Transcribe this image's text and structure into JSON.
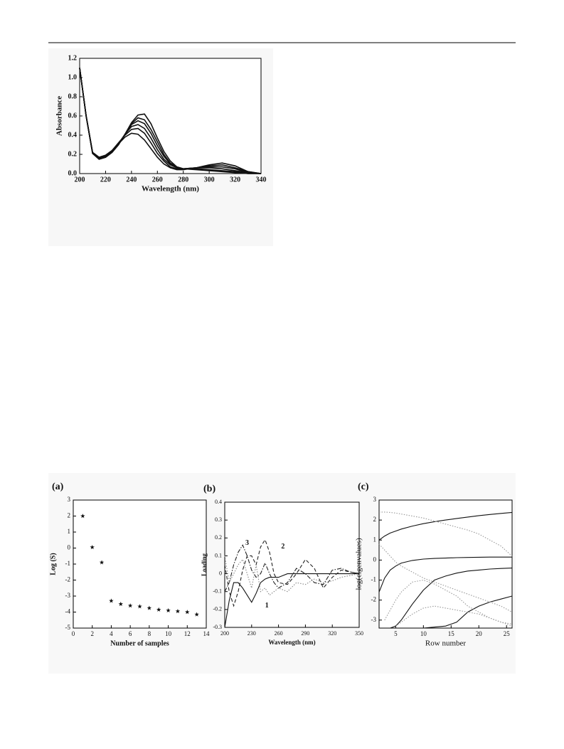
{
  "chart_data": [
    {
      "type": "line",
      "x_label": "Wavelength (nm)",
      "y_label": "Absorbance",
      "xlim": [
        200,
        340
      ],
      "ylim": [
        0,
        1.2
      ],
      "xticks": [
        200,
        220,
        240,
        260,
        280,
        300,
        320,
        340
      ],
      "yticks": [
        {
          "value": 0,
          "label": "0.0"
        },
        0.2,
        0.4,
        0.6,
        0.8,
        {
          "value": 1,
          "label": "1.0"
        },
        1.2
      ],
      "x": [
        200,
        205,
        210,
        215,
        220,
        225,
        230,
        235,
        240,
        245,
        250,
        255,
        260,
        265,
        270,
        275,
        280,
        290,
        300,
        310,
        320,
        330,
        340
      ],
      "series": [
        {
          "color": "#111111",
          "style": "solid",
          "values": [
            1.1,
            0.6,
            0.22,
            0.17,
            0.19,
            0.24,
            0.31,
            0.38,
            0.42,
            0.41,
            0.35,
            0.26,
            0.17,
            0.1,
            0.06,
            0.04,
            0.04,
            0.06,
            0.09,
            0.11,
            0.08,
            0.02,
            0
          ]
        },
        {
          "color": "#111111",
          "style": "solid",
          "values": [
            1.1,
            0.6,
            0.22,
            0.17,
            0.19,
            0.24,
            0.32,
            0.4,
            0.46,
            0.47,
            0.42,
            0.32,
            0.21,
            0.13,
            0.07,
            0.05,
            0.05,
            0.06,
            0.08,
            0.09,
            0.06,
            0.02,
            0
          ]
        },
        {
          "color": "#111111",
          "style": "solid",
          "values": [
            1.1,
            0.6,
            0.21,
            0.16,
            0.18,
            0.23,
            0.31,
            0.41,
            0.49,
            0.51,
            0.47,
            0.37,
            0.25,
            0.15,
            0.09,
            0.06,
            0.05,
            0.06,
            0.07,
            0.07,
            0.05,
            0.01,
            0
          ]
        },
        {
          "color": "#111111",
          "style": "solid",
          "values": [
            1.1,
            0.6,
            0.21,
            0.16,
            0.18,
            0.23,
            0.31,
            0.41,
            0.51,
            0.55,
            0.52,
            0.42,
            0.29,
            0.18,
            0.1,
            0.06,
            0.05,
            0.06,
            0.06,
            0.05,
            0.03,
            0.01,
            0
          ]
        },
        {
          "color": "#111111",
          "style": "solid",
          "values": [
            1.1,
            0.6,
            0.21,
            0.15,
            0.17,
            0.22,
            0.3,
            0.41,
            0.52,
            0.58,
            0.56,
            0.46,
            0.33,
            0.2,
            0.11,
            0.07,
            0.05,
            0.05,
            0.04,
            0.03,
            0.02,
            0,
            0
          ]
        },
        {
          "color": "#111111",
          "style": "solid",
          "values": [
            1.1,
            0.6,
            0.21,
            0.15,
            0.17,
            0.22,
            0.3,
            0.41,
            0.53,
            0.61,
            0.62,
            0.52,
            0.37,
            0.23,
            0.13,
            0.07,
            0.05,
            0.04,
            0.03,
            0.02,
            0.01,
            0,
            0
          ]
        }
      ]
    },
    {
      "type": "scatter",
      "label": "(a)",
      "x_label": "Number of samples",
      "y_label": "Log (S)",
      "xlim": [
        0,
        14
      ],
      "ylim": [
        -5,
        3
      ],
      "xticks": [
        0,
        2,
        4,
        6,
        8,
        10,
        12,
        14
      ],
      "yticks": [
        -5,
        -4,
        -3,
        -2,
        -1,
        0,
        1,
        2,
        3
      ],
      "color": "#111111",
      "x": [
        1,
        2,
        3,
        4,
        5,
        6,
        7,
        8,
        9,
        10,
        11,
        12,
        13
      ],
      "values": [
        2,
        0.05,
        -0.9,
        -3.3,
        -3.5,
        -3.6,
        -3.65,
        -3.75,
        -3.85,
        -3.9,
        -3.95,
        -4,
        -4.15
      ]
    },
    {
      "type": "line",
      "label": "(b)",
      "x_label": "Wavelength (nm)",
      "y_label": "Loading",
      "xlim": [
        200,
        350
      ],
      "ylim": [
        -0.3,
        0.4
      ],
      "xticks": [
        200,
        230,
        260,
        290,
        320,
        350
      ],
      "yticks": [
        -0.3,
        -0.2,
        -0.1,
        0,
        0.1,
        0.2,
        0.3,
        0.4
      ],
      "x": [
        200,
        205,
        210,
        215,
        220,
        225,
        230,
        235,
        240,
        245,
        250,
        255,
        260,
        270,
        280,
        290,
        300,
        310,
        320,
        330,
        340,
        350
      ],
      "series": [
        {
          "color": "#111111",
          "style": "solid",
          "values": [
            -0.3,
            -0.15,
            -0.05,
            -0.05,
            -0.08,
            -0.12,
            -0.16,
            -0.11,
            -0.05,
            -0.03,
            -0.02,
            -0.02,
            -0.02,
            0,
            0,
            0,
            0,
            0,
            0,
            0,
            0,
            0
          ]
        },
        {
          "color": "#222222",
          "style": "dashed",
          "values": [
            0.05,
            -0.1,
            -0.18,
            -0.1,
            0.02,
            0.1,
            0.1,
            0.05,
            0.15,
            0.19,
            0.12,
            0,
            -0.05,
            -0.06,
            0,
            0.08,
            0.03,
            -0.08,
            -0.02,
            0.02,
            0.01,
            0
          ]
        },
        {
          "color": "#222222",
          "style": "dashdot",
          "values": [
            -0.1,
            -0.05,
            0.05,
            0.12,
            0.16,
            0.1,
            0.02,
            -0.02,
            0,
            0.06,
            0,
            -0.05,
            -0.08,
            -0.05,
            0.03,
            0,
            -0.05,
            -0.06,
            0.02,
            0.03,
            0.01,
            0
          ]
        },
        {
          "color": "#888888",
          "style": "dotted",
          "values": [
            0.1,
            -0.05,
            0,
            0.05,
            0.08,
            0,
            -0.08,
            0.05,
            -0.1,
            -0.08,
            -0.12,
            -0.1,
            -0.08,
            -0.1,
            -0.05,
            -0.06,
            -0.03,
            -0.05,
            -0.04,
            -0.02,
            -0.01,
            0
          ]
        }
      ],
      "annotations": [
        {
          "text": "1",
          "x": 247,
          "y": -0.18
        },
        {
          "text": "2",
          "x": 265,
          "y": 0.15
        },
        {
          "text": "3",
          "x": 225,
          "y": 0.17
        }
      ]
    },
    {
      "type": "line",
      "label": "(c)",
      "x_label": "Row number",
      "y_label": "log(eigenvalues)",
      "xlim": [
        2,
        26
      ],
      "ylim": [
        -3.4,
        3
      ],
      "xticks": [
        5,
        10,
        15,
        20,
        25
      ],
      "yticks": [
        -3,
        -2,
        -1,
        0,
        1,
        2,
        3
      ],
      "x": [
        2,
        3,
        4,
        5,
        6,
        8,
        10,
        12,
        14,
        16,
        18,
        20,
        22,
        24,
        26
      ],
      "series": [
        {
          "color": "#111111",
          "style": "solid",
          "values": [
            1,
            1.2,
            1.35,
            1.45,
            1.55,
            1.7,
            1.82,
            1.92,
            2,
            2.08,
            2.15,
            2.22,
            2.28,
            2.33,
            2.38
          ]
        },
        {
          "color": "#111111",
          "style": "solid",
          "values": [
            -1.6,
            -0.9,
            -0.5,
            -0.3,
            -0.15,
            -0.02,
            0.05,
            0.08,
            0.1,
            0.12,
            0.13,
            0.14,
            0.15,
            0.15,
            0.15
          ]
        },
        {
          "color": "#111111",
          "style": "solid",
          "values": [
            null,
            null,
            -3.4,
            -3.3,
            -3,
            -2.2,
            -1.5,
            -1,
            -0.8,
            -0.65,
            -0.55,
            -0.5,
            -0.45,
            -0.42,
            -0.4
          ]
        },
        {
          "color": "#111111",
          "style": "solid",
          "values": [
            null,
            null,
            null,
            null,
            null,
            null,
            -3.4,
            -3.35,
            -3.3,
            -3.1,
            -2.6,
            -2.3,
            -2.1,
            -1.95,
            -1.8
          ]
        },
        {
          "color": "#999999",
          "style": "dotted",
          "values": [
            2.4,
            2.4,
            2.38,
            2.35,
            2.3,
            2.2,
            2.1,
            1.95,
            1.8,
            1.65,
            1.5,
            1.3,
            1,
            0.7,
            0.2
          ]
        },
        {
          "color": "#999999",
          "style": "dotted",
          "values": [
            0.8,
            0.5,
            0.2,
            -0.1,
            -0.3,
            -0.6,
            -0.9,
            -1.1,
            -1.3,
            -1.5,
            -1.7,
            -1.9,
            -2.1,
            -2.3,
            -2.6
          ]
        },
        {
          "color": "#999999",
          "style": "dotted",
          "values": [
            null,
            -3,
            -2.5,
            -2,
            -1.6,
            -1.1,
            -1,
            -1.2,
            -1.5,
            -1.8,
            -2.3,
            -2.6,
            -2.9,
            -3.1,
            -3.3
          ]
        },
        {
          "color": "#999999",
          "style": "dotted",
          "values": [
            null,
            null,
            null,
            -3.3,
            -3.1,
            -2.7,
            -2.4,
            -2.3,
            -2.4,
            -2.5,
            -2.6,
            -2.7,
            -2.9,
            -3.1,
            -3.2
          ]
        }
      ]
    }
  ]
}
